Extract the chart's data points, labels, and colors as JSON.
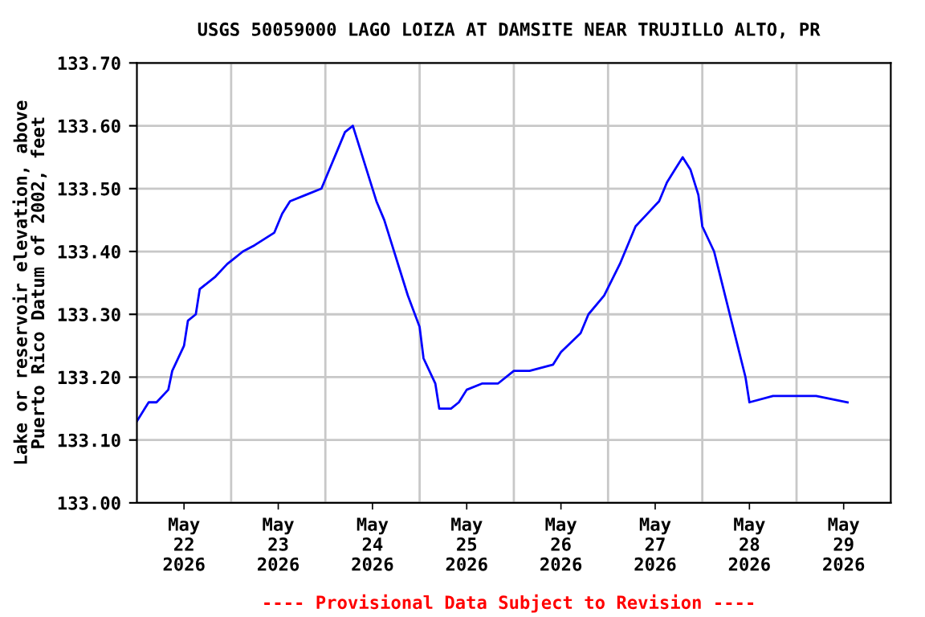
{
  "chart_data": {
    "type": "line",
    "title": "USGS 50059000 LAGO LOIZA AT DAMSITE NEAR TRUJILLO ALTO, PR",
    "ylabel": "Lake or reservoir elevation, above\nPuerto Rico Datum of 2002, feet",
    "annotations": [
      "---- Provisional Data Subject to Revision ----"
    ],
    "x": [
      "2026-05-22T00:00",
      "2026-05-22T02:00",
      "2026-05-22T03:00",
      "2026-05-22T05:00",
      "2026-05-22T08:00",
      "2026-05-22T09:00",
      "2026-05-22T12:00",
      "2026-05-22T13:00",
      "2026-05-22T15:00",
      "2026-05-22T16:00",
      "2026-05-22T20:00",
      "2026-05-22T23:00",
      "2026-05-23T01:00",
      "2026-05-23T03:00",
      "2026-05-23T06:00",
      "2026-05-23T11:00",
      "2026-05-23T13:00",
      "2026-05-23T15:00",
      "2026-05-23T19:00",
      "2026-05-23T23:00",
      "2026-05-24T01:00",
      "2026-05-24T03:00",
      "2026-05-24T05:00",
      "2026-05-24T07:00",
      "2026-05-24T09:00",
      "2026-05-24T11:00",
      "2026-05-24T13:00",
      "2026-05-24T15:00",
      "2026-05-24T17:00",
      "2026-05-24T19:00",
      "2026-05-24T21:00",
      "2026-05-25T00:00",
      "2026-05-25T01:00",
      "2026-05-25T04:00",
      "2026-05-25T05:00",
      "2026-05-25T08:00",
      "2026-05-25T10:00",
      "2026-05-25T12:00",
      "2026-05-25T16:00",
      "2026-05-25T20:00",
      "2026-05-26T00:00",
      "2026-05-26T04:00",
      "2026-05-26T10:00",
      "2026-05-26T12:00",
      "2026-05-26T17:00",
      "2026-05-26T19:00",
      "2026-05-26T23:00",
      "2026-05-27T03:00",
      "2026-05-27T05:00",
      "2026-05-27T07:00",
      "2026-05-27T10:00",
      "2026-05-27T13:00",
      "2026-05-27T15:00",
      "2026-05-27T17:00",
      "2026-05-27T19:00",
      "2026-05-27T21:00",
      "2026-05-27T23:00",
      "2026-05-28T00:00",
      "2026-05-28T03:00",
      "2026-05-28T05:00",
      "2026-05-28T07:00",
      "2026-05-28T09:00",
      "2026-05-28T11:00",
      "2026-05-28T12:00",
      "2026-05-28T18:00",
      "2026-05-28T23:00",
      "2026-05-29T05:00",
      "2026-05-29T13:00"
    ],
    "series": [
      {
        "color": "#0000ff",
        "values": [
          133.13,
          133.15,
          133.16,
          133.16,
          133.18,
          133.21,
          133.25,
          133.29,
          133.3,
          133.34,
          133.36,
          133.38,
          133.39,
          133.4,
          133.41,
          133.43,
          133.46,
          133.48,
          133.49,
          133.5,
          133.53,
          133.56,
          133.59,
          133.6,
          133.56,
          133.52,
          133.48,
          133.45,
          133.41,
          133.37,
          133.33,
          133.28,
          133.23,
          133.19,
          133.15,
          133.15,
          133.16,
          133.18,
          133.19,
          133.19,
          133.21,
          133.21,
          133.22,
          133.24,
          133.27,
          133.3,
          133.33,
          133.38,
          133.41,
          133.44,
          133.46,
          133.48,
          133.51,
          133.53,
          133.55,
          133.53,
          133.49,
          133.44,
          133.4,
          133.35,
          133.3,
          133.25,
          133.2,
          133.16,
          133.17,
          133.17,
          133.17,
          133.16
        ]
      }
    ],
    "xlim": [
      "2026-05-22T00:00",
      "2026-05-30T00:00"
    ],
    "xticks": [
      {
        "value": "2026-05-22T12:00",
        "label": "May\n22\n2026"
      },
      {
        "value": "2026-05-23T12:00",
        "label": "May\n23\n2026"
      },
      {
        "value": "2026-05-24T12:00",
        "label": "May\n24\n2026"
      },
      {
        "value": "2026-05-25T12:00",
        "label": "May\n25\n2026"
      },
      {
        "value": "2026-05-26T12:00",
        "label": "May\n26\n2026"
      },
      {
        "value": "2026-05-27T12:00",
        "label": "May\n27\n2026"
      },
      {
        "value": "2026-05-28T12:00",
        "label": "May\n28\n2026"
      },
      {
        "value": "2026-05-29T12:00",
        "label": "May\n29\n2026"
      },
      {
        "value": "2026-05-23T00:00",
        "label": null
      },
      {
        "value": "2026-05-24T00:00",
        "label": null
      },
      {
        "value": "2026-05-25T00:00",
        "label": null
      },
      {
        "value": "2026-05-26T00:00",
        "label": null
      },
      {
        "value": "2026-05-27T00:00",
        "label": null
      },
      {
        "value": "2026-05-28T00:00",
        "label": null
      },
      {
        "value": "2026-05-29T00:00",
        "label": null
      }
    ],
    "ylim": [
      133.0,
      133.7
    ],
    "yticks": [
      {
        "value": 133.0,
        "label": "133.00"
      },
      {
        "value": 133.1,
        "label": "133.10"
      },
      {
        "value": 133.2,
        "label": "133.20"
      },
      {
        "value": 133.3,
        "label": "133.30"
      },
      {
        "value": 133.4,
        "label": "133.40"
      },
      {
        "value": 133.5,
        "label": "133.50"
      },
      {
        "value": 133.6,
        "label": "133.60"
      },
      {
        "value": 133.7,
        "label": "133.70"
      }
    ],
    "grid": true,
    "legend": false
  }
}
